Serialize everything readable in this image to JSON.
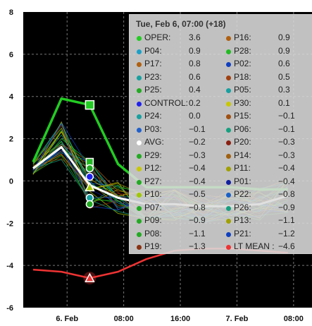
{
  "chart_data": {
    "type": "line",
    "ylim": [
      -6,
      8
    ],
    "y_ticks": [
      "-6",
      "-4",
      "-2",
      "0",
      "2",
      "4",
      "6",
      "8"
    ],
    "x_tick_labels": [
      "6. Feb",
      "08:00",
      "16:00",
      "7. Feb",
      "08:00"
    ],
    "grid": true,
    "background": "#000000",
    "series": [
      {
        "name": "OPER",
        "color": "#22cc22",
        "x": [
          0,
          1,
          2,
          3,
          4,
          5,
          6,
          7,
          8,
          9
        ],
        "values": [
          0.9,
          3.9,
          3.6,
          0.8,
          -0.3,
          -0.3,
          -0.3,
          -0.3,
          -0.4,
          -0.4
        ]
      },
      {
        "name": "AVG",
        "color": "#ffffff",
        "x": [
          0,
          1,
          2,
          3,
          4,
          5,
          6,
          7,
          8,
          9
        ],
        "values": [
          0.6,
          1.6,
          -0.2,
          -0.8,
          -1.1,
          -1.1,
          -1.2,
          -1.2,
          -1.1,
          -0.7
        ]
      },
      {
        "name": "LT MEAN",
        "color": "#ee3333",
        "x": [
          0,
          1,
          2,
          3,
          4,
          5,
          6,
          7,
          8,
          9
        ],
        "values": [
          -4.2,
          -4.3,
          -4.6,
          -4.3,
          -3.7,
          -3.3,
          -3.2,
          -3.2,
          -3.3,
          -3.4
        ]
      }
    ],
    "tooltip": {
      "title": "Tue, Feb 6, 07:00 (+18)",
      "left_column": [
        {
          "name": "OPER:",
          "value": "3.6",
          "color": "#22cc22"
        },
        {
          "name": "P04:",
          "value": "0.9",
          "color": "#1aa0c8"
        },
        {
          "name": "P17:",
          "value": "0.8",
          "color": "#b06010"
        },
        {
          "name": "P23:",
          "value": "0.6",
          "color": "#17a0a0"
        },
        {
          "name": "P25:",
          "value": "0.4",
          "color": "#22aa22"
        },
        {
          "name": "CONTROL:",
          "value": "0.2",
          "color": "#2020ee"
        },
        {
          "name": "P24:",
          "value": "0.0",
          "color": "#17a0a0"
        },
        {
          "name": "P03:",
          "value": "−0.1",
          "color": "#2060cc"
        },
        {
          "name": "AVG:",
          "value": "−0.2",
          "color": "#ffffff"
        },
        {
          "name": "P29:",
          "value": "−0.3",
          "color": "#22aa22"
        },
        {
          "name": "P12:",
          "value": "−0.4",
          "color": "#c8c800"
        },
        {
          "name": "P27:",
          "value": "−0.4",
          "color": "#22aa22"
        },
        {
          "name": "P10:",
          "value": "−0.5",
          "color": "#a0c800"
        },
        {
          "name": "P07:",
          "value": "−0.8",
          "color": "#22aa22"
        },
        {
          "name": "P09:",
          "value": "−0.9",
          "color": "#22aa22"
        },
        {
          "name": "P08:",
          "value": "−1.1",
          "color": "#22aa22"
        },
        {
          "name": "P19:",
          "value": "−1.3",
          "color": "#8a3010"
        }
      ],
      "right_column": [
        {
          "name": "P16:",
          "value": "0.9",
          "color": "#b06010"
        },
        {
          "name": "P28:",
          "value": "0.9",
          "color": "#22bb22"
        },
        {
          "name": "P02:",
          "value": "0.6",
          "color": "#1040c0"
        },
        {
          "name": "P18:",
          "value": "0.5",
          "color": "#a04010"
        },
        {
          "name": "P05:",
          "value": "0.3",
          "color": "#17a0a0"
        },
        {
          "name": "P30:",
          "value": "0.1",
          "color": "#c8c800"
        },
        {
          "name": "P15:",
          "value": "−0.1",
          "color": "#a05010"
        },
        {
          "name": "P06:",
          "value": "−0.1",
          "color": "#17a080"
        },
        {
          "name": "P20:",
          "value": "−0.3",
          "color": "#8a2010"
        },
        {
          "name": "P14:",
          "value": "−0.3",
          "color": "#a06010"
        },
        {
          "name": "P11:",
          "value": "−0.4",
          "color": "#a0a000"
        },
        {
          "name": "P01:",
          "value": "−0.4",
          "color": "#1020a0"
        },
        {
          "name": "P22:",
          "value": "−0.8",
          "color": "#1a60c8"
        },
        {
          "name": "P26:",
          "value": "−0.9",
          "color": "#17a080"
        },
        {
          "name": "P13:",
          "value": "−1.1",
          "color": "#a0a000"
        },
        {
          "name": "P21:",
          "value": "−1.2",
          "color": "#1040c0"
        },
        {
          "name": "LT MEAN :",
          "value": "−4.6",
          "color": "#ee3333"
        }
      ]
    }
  }
}
